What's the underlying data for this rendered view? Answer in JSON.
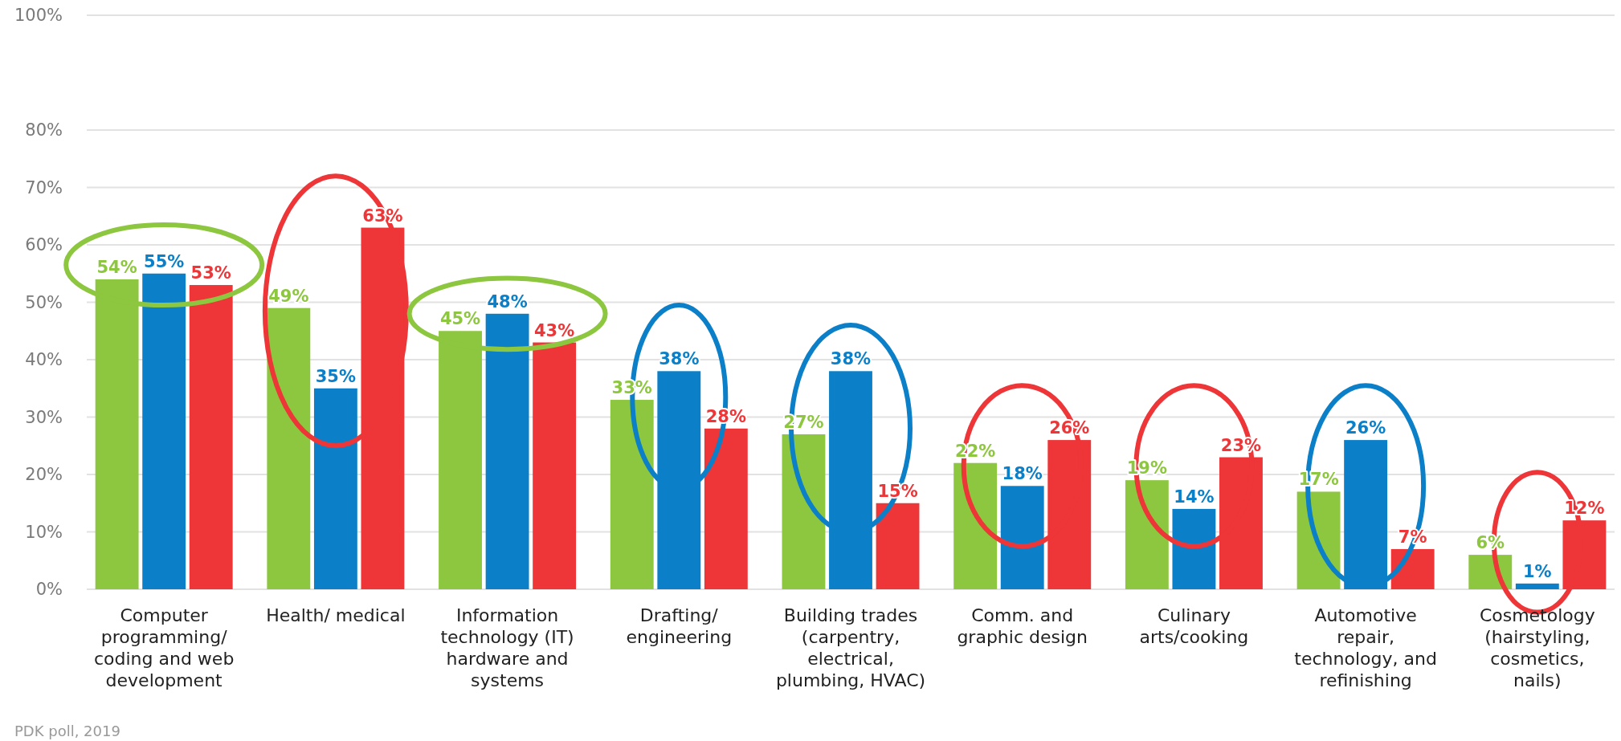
{
  "chart_data": {
    "type": "bar",
    "categories": [
      "Computer programming/ coding and web development",
      "Health/ medical",
      "Information technology (IT) hardware and systems",
      "Drafting/ engineering",
      "Building trades (carpentry, electrical, plumbing, HVAC)",
      "Comm. and graphic design",
      "Culinary arts/cooking",
      "Automotive repair, technology, and refinishing",
      "Cosmetology (hairstyling, cosmetics, nails)"
    ],
    "series": [
      {
        "color": "#8dc63f",
        "values": [
          54,
          49,
          45,
          33,
          27,
          22,
          19,
          17,
          6
        ],
        "value_labels": [
          "54%",
          "49%",
          "45%",
          "33%",
          "27%",
          "22%",
          "19%",
          "17%",
          "6%"
        ]
      },
      {
        "color": "#0b80c8",
        "values": [
          55,
          35,
          48,
          38,
          38,
          18,
          14,
          26,
          1
        ],
        "value_labels": [
          "55%",
          "35%",
          "48%",
          "38%",
          "38%",
          "18%",
          "14%",
          "26%",
          "1%"
        ]
      },
      {
        "color": "#ee3537",
        "values": [
          53,
          63,
          43,
          28,
          15,
          26,
          23,
          7,
          12
        ],
        "value_labels": [
          "53%",
          "63%",
          "43%",
          "28%",
          "15%",
          "26%",
          "23%",
          "7%",
          "12%"
        ]
      }
    ],
    "ylim": [
      0,
      100
    ],
    "yticks": [
      {
        "value": 0,
        "label": "0%"
      },
      {
        "value": 10,
        "label": "10%"
      },
      {
        "value": 20,
        "label": "20%"
      },
      {
        "value": 30,
        "label": "30%"
      },
      {
        "value": 40,
        "label": "40%"
      },
      {
        "value": 50,
        "label": "50%"
      },
      {
        "value": 60,
        "label": "60%"
      },
      {
        "value": 70,
        "label": "70%"
      },
      {
        "value": 80,
        "label": "80%"
      },
      {
        "value": 100,
        "label": "100%"
      }
    ],
    "grid": "y",
    "annotations": [
      "PDK poll, 2019"
    ]
  }
}
